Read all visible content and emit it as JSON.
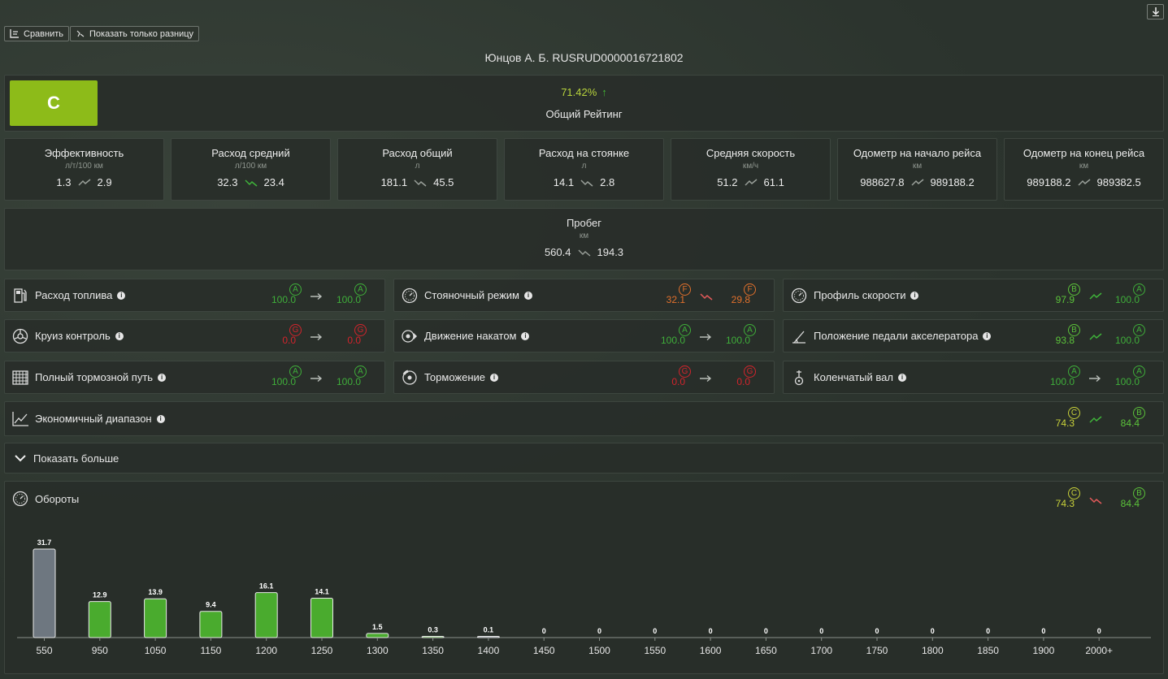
{
  "toolbar": {
    "compare_label": "Сравнить",
    "diff_label": "Показать только разницу",
    "download_icon": "download-icon"
  },
  "driver_title": "Юнцов А. Б. RUSRUD0000016721802",
  "overall": {
    "grade": "C",
    "percent": "71.42%",
    "label": "Общий Рейтинг",
    "trend": "up"
  },
  "stats": [
    {
      "name": "Эффективность",
      "unit": "л/т/100 км",
      "from": "1.3",
      "to": "2.9",
      "trend": "up-neutral"
    },
    {
      "name": "Расход средний",
      "unit": "л/100 км",
      "from": "32.3",
      "to": "23.4",
      "trend": "down-good"
    },
    {
      "name": "Расход общий",
      "unit": "л",
      "from": "181.1",
      "to": "45.5",
      "trend": "down-neutral"
    },
    {
      "name": "Расход на стоянке",
      "unit": "л",
      "from": "14.1",
      "to": "2.8",
      "trend": "down-neutral"
    },
    {
      "name": "Средняя скорость",
      "unit": "км/ч",
      "from": "51.2",
      "to": "61.1",
      "trend": "up-neutral"
    },
    {
      "name": "Одометр на начало рейса",
      "unit": "км",
      "from": "988627.8",
      "to": "989188.2",
      "trend": "up-neutral"
    },
    {
      "name": "Одометр на конец рейса",
      "unit": "км",
      "from": "989188.2",
      "to": "989382.5",
      "trend": "up-neutral"
    }
  ],
  "mileage": {
    "name": "Пробег",
    "unit": "км",
    "from": "560.4",
    "to": "194.3",
    "trend": "down-neutral"
  },
  "kpis": [
    {
      "name": "Расход топлива",
      "icon": "fuel-pump-icon",
      "from": "100.0",
      "from_grade": "A",
      "to": "100.0",
      "to_grade": "A",
      "trend": "flat"
    },
    {
      "name": "Стояночный режим",
      "icon": "idle-gauge-icon",
      "from": "32.1",
      "from_grade": "F",
      "to": "29.8",
      "to_grade": "F",
      "trend": "down-bad"
    },
    {
      "name": "Профиль скорости",
      "icon": "speedometer-icon",
      "from": "97.9",
      "from_grade": "B",
      "to": "100.0",
      "to_grade": "A",
      "trend": "up-good"
    },
    {
      "name": "Круиз контроль",
      "icon": "cruise-icon",
      "from": "0.0",
      "from_grade": "G",
      "to": "0.0",
      "to_grade": "G",
      "trend": "flat"
    },
    {
      "name": "Движение накатом",
      "icon": "coasting-icon",
      "from": "100.0",
      "from_grade": "A",
      "to": "100.0",
      "to_grade": "A",
      "trend": "flat"
    },
    {
      "name": "Положение педали акселератора",
      "icon": "pedal-icon",
      "from": "93.8",
      "from_grade": "B",
      "to": "100.0",
      "to_grade": "A",
      "trend": "up-good"
    },
    {
      "name": "Полный тормозной путь",
      "icon": "brake-distance-icon",
      "from": "100.0",
      "from_grade": "A",
      "to": "100.0",
      "to_grade": "A",
      "trend": "flat"
    },
    {
      "name": "Торможение",
      "icon": "brake-disc-icon",
      "from": "0.0",
      "from_grade": "G",
      "to": "0.0",
      "to_grade": "G",
      "trend": "flat"
    },
    {
      "name": "Коленчатый вал",
      "icon": "crankshaft-icon",
      "from": "100.0",
      "from_grade": "A",
      "to": "100.0",
      "to_grade": "A",
      "trend": "flat"
    }
  ],
  "eco_range": {
    "name": "Экономичный диапазон",
    "icon": "eco-range-icon",
    "from": "74.3",
    "from_grade": "C",
    "to": "84.4",
    "to_grade": "B",
    "trend": "up-good"
  },
  "show_more": "Показать больше",
  "rpm": {
    "name": "Обороты",
    "icon": "tachometer-icon",
    "from": "74.3",
    "from_grade": "C",
    "to": "84.4",
    "to_grade": "B",
    "trend": "down-bad"
  },
  "colors": {
    "grade_box": "#8dbb19",
    "bar_green": "#4aab2e",
    "bar_gray": "#6e7780",
    "accent_up": "#42b533"
  },
  "chart_data": {
    "type": "bar",
    "categories": [
      "550",
      "950",
      "1050",
      "1150",
      "1200",
      "1250",
      "1300",
      "1350",
      "1400",
      "1450",
      "1500",
      "1550",
      "1600",
      "1650",
      "1700",
      "1750",
      "1800",
      "1850",
      "1900",
      "2000+"
    ],
    "values": [
      31.7,
      12.9,
      13.9,
      9.4,
      16.1,
      14.1,
      1.5,
      0.3,
      0.1,
      0,
      0,
      0,
      0,
      0,
      0,
      0,
      0,
      0,
      0,
      0
    ],
    "labels": [
      "31.7",
      "12.9",
      "13.9",
      "9.4",
      "16.1",
      "14.1",
      "1.5",
      "0.3",
      "0.1",
      "0",
      "0",
      "0",
      "0",
      "0",
      "0",
      "0",
      "0",
      "0",
      "0",
      "0"
    ],
    "highlight": [
      false,
      true,
      true,
      true,
      true,
      true,
      true,
      true,
      false,
      false,
      false,
      false,
      false,
      false,
      false,
      false,
      false,
      false,
      false,
      false
    ],
    "title": "",
    "xlabel": "",
    "ylabel": "",
    "ylim": [
      0,
      32
    ],
    "grid": false,
    "legend": "none"
  }
}
